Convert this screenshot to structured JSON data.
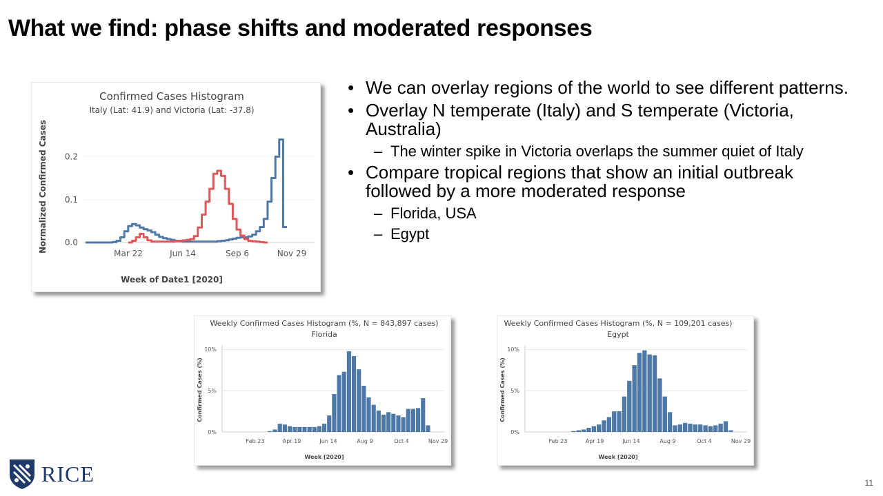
{
  "slide": {
    "title": "What we find: phase shifts and moderated responses",
    "page_number": "11",
    "logo_text": "RICE"
  },
  "bullets": [
    {
      "text": "We can overlay regions of the world to see different patterns.",
      "subs": []
    },
    {
      "text": "Overlay N temperate (Italy) and S temperate  (Victoria, Australia)",
      "subs": [
        "The winter spike in  Victoria overlaps the summer quiet of Italy"
      ]
    },
    {
      "text": "Compare tropical regions that show an initial outbreak followed by a more moderated response",
      "subs": [
        "Florida, USA",
        "Egypt"
      ]
    }
  ],
  "chart_data": [
    {
      "type": "line",
      "title": "Confirmed Cases Histogram",
      "subtitle": "Italy (Lat: 41.9) and Victoria (Lat: -37.8)",
      "xlabel": "Week of Date1 [2020]",
      "ylabel": "Normalized Confirmed Cases",
      "xtick_labels": [
        "Mar 22",
        "Jun 14",
        "Sep 6",
        "Nov 29"
      ],
      "ytick_labels": [
        "0.0",
        "0.1",
        "0.2"
      ],
      "ylim": [
        0,
        0.26
      ],
      "step": true,
      "series": [
        {
          "color": "#4e79a7",
          "values": [
            0,
            0,
            0,
            0,
            0,
            0,
            0,
            0.001,
            0.004,
            0.012,
            0.026,
            0.038,
            0.043,
            0.04,
            0.035,
            0.031,
            0.028,
            0.024,
            0.018,
            0.013,
            0.01,
            0.008,
            0.006,
            0.004,
            0.003,
            0.002,
            0.002,
            0.002,
            0.002,
            0.002,
            0.002,
            0.002,
            0.002,
            0.002,
            0.003,
            0.004,
            0.005,
            0.007,
            0.009,
            0.011,
            0.012,
            0.012,
            0.014,
            0.018,
            0.026,
            0.036,
            0.055,
            0.095,
            0.15,
            0.2,
            0.24,
            0.036
          ]
        },
        {
          "color": "#e15759",
          "values": [
            null,
            null,
            null,
            null,
            null,
            null,
            null,
            null,
            null,
            null,
            null,
            0.0,
            0.004,
            0.012,
            0.02,
            0.012,
            0.005,
            0.002,
            0.002,
            0.002,
            0.002,
            0.002,
            0.002,
            0.003,
            0.004,
            0.005,
            0.006,
            0.008,
            0.015,
            0.035,
            0.065,
            0.095,
            0.125,
            0.16,
            0.167,
            0.155,
            0.125,
            0.09,
            0.055,
            0.03,
            0.016,
            0.008,
            0.004,
            0.003,
            0.002,
            0.001,
            0.0,
            null,
            null,
            null,
            null,
            null
          ]
        }
      ]
    },
    {
      "type": "bar",
      "title": "Weekly Confirmed Cases Histogram (%, N = 843,897 cases)",
      "subtitle": "Florida",
      "xlabel": "Week [2020]",
      "ylabel": "Confirmed Cases (%)",
      "xtick_labels": [
        "Feb 23",
        "Apr 19",
        "Jun 14",
        "Aug 9",
        "Oct 4",
        "Nov 29"
      ],
      "ytick_labels": [
        "0%",
        "5%",
        "10%"
      ],
      "ylim": [
        0,
        10.2
      ],
      "color": "#4e79a7",
      "values": [
        0,
        0,
        0,
        0,
        0,
        0.1,
        0.3,
        1.0,
        0.9,
        0.7,
        0.6,
        0.6,
        0.6,
        0.6,
        0.6,
        0.7,
        1.0,
        2.0,
        4.6,
        6.9,
        7.3,
        9.8,
        9.2,
        7.6,
        5.6,
        4.2,
        3.3,
        2.6,
        2.1,
        2.4,
        2.2,
        2.0,
        1.8,
        2.8,
        2.8,
        2.9,
        4.1,
        0.8
      ]
    },
    {
      "type": "bar",
      "title": "Weekly Confirmed Cases Histogram (%, N = 109,201 cases)",
      "subtitle": "Egypt",
      "xlabel": "Week [2020]",
      "ylabel": "Confirmed Cases (%)",
      "xtick_labels": [
        "Feb 23",
        "Apr 19",
        "Jun 14",
        "Aug 9",
        "Oct 4",
        "Nov 29"
      ],
      "ytick_labels": [
        "0%",
        "5%",
        "10%"
      ],
      "ylim": [
        0,
        10.2
      ],
      "color": "#4e79a7",
      "values": [
        0,
        0,
        0,
        0,
        0,
        0.1,
        0.2,
        0.3,
        0.5,
        0.7,
        0.9,
        1.4,
        1.8,
        2.5,
        2.5,
        4.3,
        6.2,
        8.1,
        9.6,
        9.9,
        9.4,
        9.3,
        6.5,
        4.3,
        2.4,
        0.8,
        0.9,
        1.1,
        1.0,
        0.9,
        0.9,
        0.8,
        0.7,
        0.8,
        1.0,
        1.3,
        0.2
      ]
    }
  ]
}
